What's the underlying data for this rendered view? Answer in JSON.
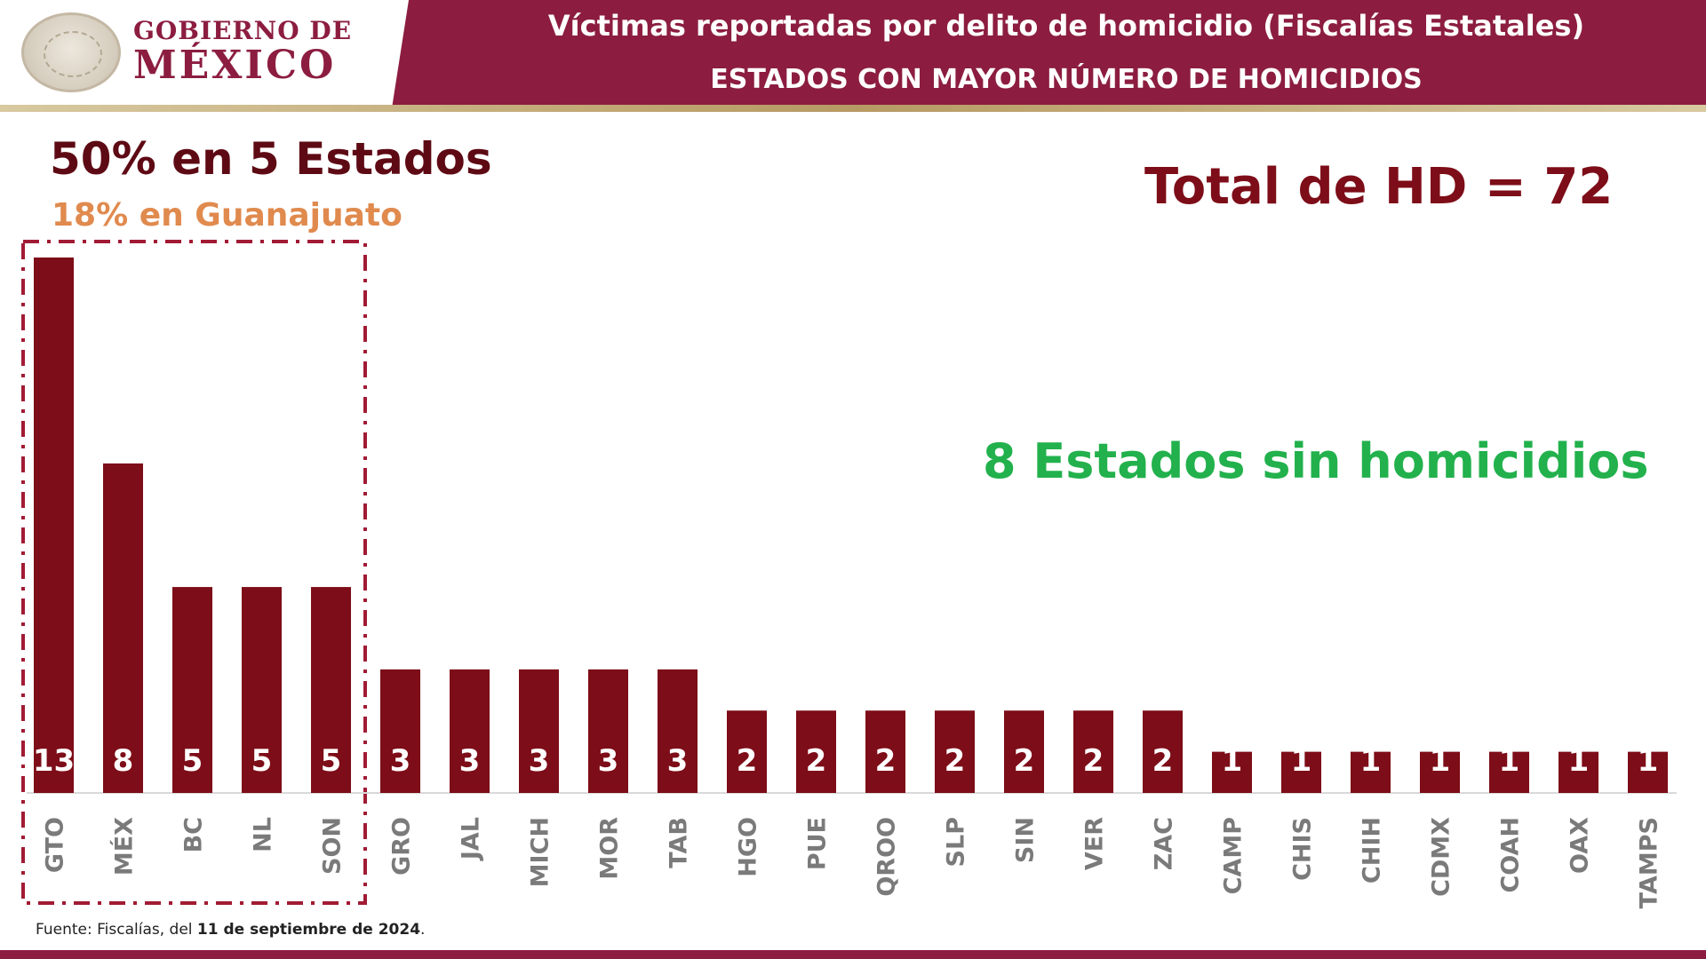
{
  "header": {
    "logo_line1": "GOBIERNO DE",
    "logo_line2": "MÉXICO",
    "title": "Víctimas reportadas por delito de homicidio (Fiscalías Estatales)",
    "subtitle": "ESTADOS CON MAYOR NÚMERO DE HOMICIDIOS"
  },
  "annotations": {
    "main": "50% en 5 Estados",
    "sub": "18% en Guanajuato",
    "total": "Total de HD = 72",
    "no_homicides": "8 Estados sin homicidios"
  },
  "footer": {
    "prefix": "Fuente: Fiscalías, del ",
    "date": "11 de septiembre de 2024",
    "suffix": "."
  },
  "colors": {
    "header": "#8c1d40",
    "bar": "#7d0d18",
    "highlight_box": "#a11b34",
    "annotation_orange": "#e08a4e",
    "annotation_green": "#22b14c"
  },
  "chart_data": {
    "type": "bar",
    "categories": [
      "GTO",
      "MÉX",
      "BC",
      "NL",
      "SON",
      "GRO",
      "JAL",
      "MICH",
      "MOR",
      "TAB",
      "HGO",
      "PUE",
      "QROO",
      "SLP",
      "SIN",
      "VER",
      "ZAC",
      "CAMP",
      "CHIS",
      "CHIH",
      "CDMX",
      "COAH",
      "OAX",
      "TAMPS"
    ],
    "values": [
      13,
      8,
      5,
      5,
      5,
      3,
      3,
      3,
      3,
      3,
      2,
      2,
      2,
      2,
      2,
      2,
      2,
      1,
      1,
      1,
      1,
      1,
      1,
      1
    ],
    "highlighted_categories": [
      "GTO",
      "MÉX",
      "BC",
      "NL",
      "SON"
    ],
    "ylim": [
      0,
      13
    ],
    "grid": false,
    "legend": "none",
    "data_labels": true
  }
}
